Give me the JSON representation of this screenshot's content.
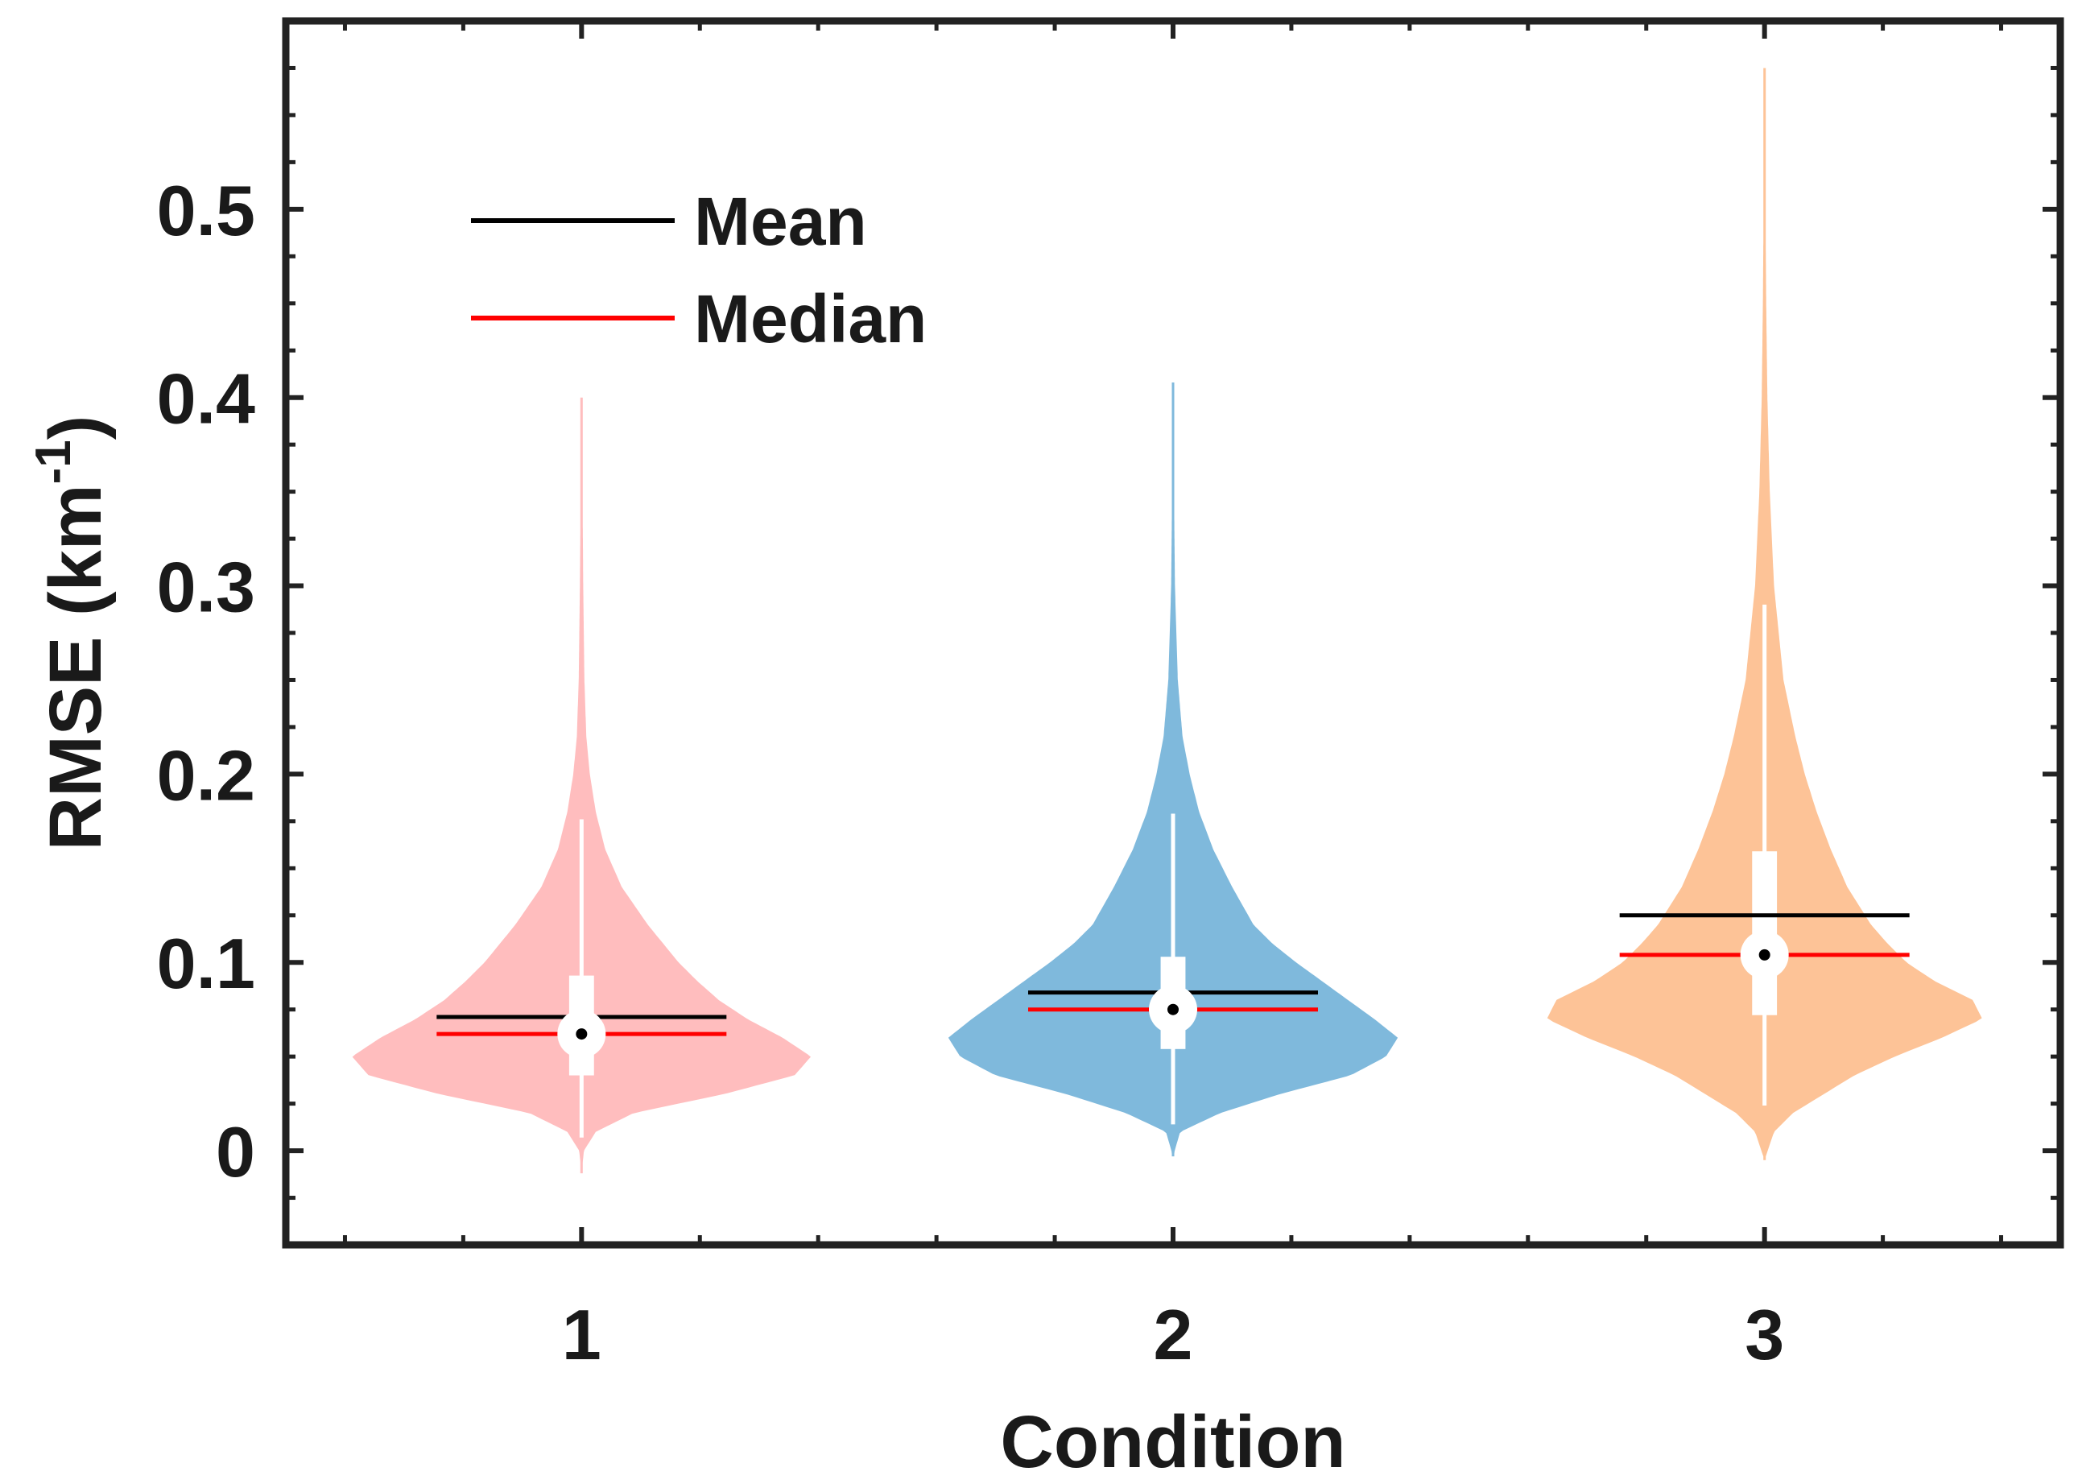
{
  "chart_data": {
    "type": "violin",
    "title": "",
    "xlabel": "Condition",
    "ylabel_main": "RMSE (km",
    "ylabel_sup": "-1",
    "ylabel_close": ")",
    "categories": [
      "1",
      "2",
      "3"
    ],
    "ylim": [
      -0.05,
      0.6
    ],
    "yticks": [
      0,
      0.1,
      0.2,
      0.3,
      0.4,
      0.5
    ],
    "ytick_labels": [
      "0",
      "0.1",
      "0.2",
      "0.3",
      "0.4",
      "0.5"
    ],
    "legend": {
      "placement": "top-left",
      "entries": [
        {
          "label": "Mean",
          "color": "#000000"
        },
        {
          "label": "Median",
          "color": "#ff0000"
        }
      ]
    },
    "series": [
      {
        "name": "1",
        "color": "#ffbdbe",
        "mean": 0.071,
        "median": 0.062,
        "q1": 0.04,
        "q3": 0.093,
        "whisker_low": 0.007,
        "whisker_high": 0.176,
        "min": -0.012,
        "max": 0.4,
        "density": [
          [
            -0.012,
            0
          ],
          [
            0.0,
            0.01
          ],
          [
            0.01,
            0.06
          ],
          [
            0.02,
            0.22
          ],
          [
            0.03,
            0.6
          ],
          [
            0.04,
            0.9
          ],
          [
            0.05,
            0.97
          ],
          [
            0.06,
            0.85
          ],
          [
            0.07,
            0.7
          ],
          [
            0.08,
            0.58
          ],
          [
            0.09,
            0.49
          ],
          [
            0.1,
            0.41
          ],
          [
            0.12,
            0.28
          ],
          [
            0.14,
            0.17
          ],
          [
            0.16,
            0.1
          ],
          [
            0.18,
            0.06
          ],
          [
            0.2,
            0.035
          ],
          [
            0.22,
            0.02
          ],
          [
            0.25,
            0.012
          ],
          [
            0.3,
            0.007
          ],
          [
            0.35,
            0.004
          ],
          [
            0.4,
            0
          ]
        ]
      },
      {
        "name": "2",
        "color": "#7fb9dc",
        "mean": 0.084,
        "median": 0.075,
        "q1": 0.054,
        "q3": 0.103,
        "whisker_low": 0.014,
        "whisker_high": 0.179,
        "min": -0.003,
        "max": 0.408,
        "density": [
          [
            -0.003,
            0
          ],
          [
            0.01,
            0.03
          ],
          [
            0.02,
            0.2
          ],
          [
            0.03,
            0.45
          ],
          [
            0.04,
            0.75
          ],
          [
            0.05,
            0.9
          ],
          [
            0.06,
            0.95
          ],
          [
            0.07,
            0.85
          ],
          [
            0.08,
            0.74
          ],
          [
            0.09,
            0.63
          ],
          [
            0.1,
            0.52
          ],
          [
            0.11,
            0.42
          ],
          [
            0.12,
            0.34
          ],
          [
            0.14,
            0.25
          ],
          [
            0.16,
            0.17
          ],
          [
            0.18,
            0.11
          ],
          [
            0.2,
            0.07
          ],
          [
            0.22,
            0.04
          ],
          [
            0.25,
            0.02
          ],
          [
            0.3,
            0.008
          ],
          [
            0.35,
            0.004
          ],
          [
            0.408,
            0
          ]
        ]
      },
      {
        "name": "3",
        "color": "#fdc397",
        "mean": 0.125,
        "median": 0.104,
        "q1": 0.072,
        "q3": 0.159,
        "whisker_low": 0.024,
        "whisker_high": 0.29,
        "min": -0.005,
        "max": 0.575,
        "density": [
          [
            -0.005,
            0
          ],
          [
            0.01,
            0.04
          ],
          [
            0.02,
            0.12
          ],
          [
            0.03,
            0.25
          ],
          [
            0.04,
            0.38
          ],
          [
            0.05,
            0.55
          ],
          [
            0.06,
            0.75
          ],
          [
            0.07,
            0.92
          ],
          [
            0.08,
            0.88
          ],
          [
            0.09,
            0.72
          ],
          [
            0.1,
            0.6
          ],
          [
            0.11,
            0.52
          ],
          [
            0.12,
            0.45
          ],
          [
            0.14,
            0.35
          ],
          [
            0.16,
            0.28
          ],
          [
            0.18,
            0.22
          ],
          [
            0.2,
            0.17
          ],
          [
            0.22,
            0.13
          ],
          [
            0.25,
            0.08
          ],
          [
            0.3,
            0.04
          ],
          [
            0.35,
            0.022
          ],
          [
            0.4,
            0.012
          ],
          [
            0.45,
            0.007
          ],
          [
            0.5,
            0.004
          ],
          [
            0.575,
            0
          ]
        ]
      }
    ]
  }
}
